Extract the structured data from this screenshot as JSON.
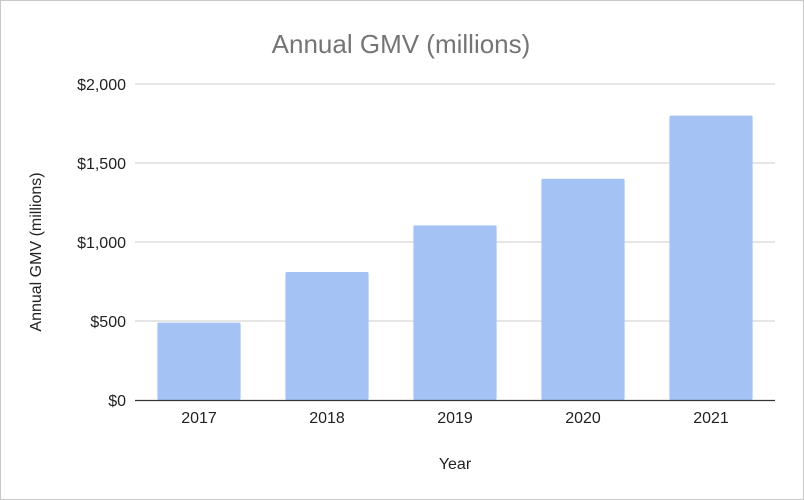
{
  "chart_data": {
    "type": "bar",
    "title": "Annual GMV (millions)",
    "xlabel": "Year",
    "ylabel": "Annual GMV (millions)",
    "categories": [
      "2017",
      "2018",
      "2019",
      "2020",
      "2021"
    ],
    "values": [
      490,
      810,
      1105,
      1400,
      1800
    ],
    "ylim": [
      0,
      2000
    ],
    "yticks": [
      0,
      500,
      1000,
      1500,
      2000
    ],
    "ytick_labels": [
      "$0",
      "$500",
      "$1,000",
      "$1,500",
      "$2,000"
    ],
    "grid": true,
    "legend": "none",
    "colors": {
      "bar": "#a4c2f4",
      "title": "#757575",
      "grid": "#cccccc",
      "axis": "#333333",
      "text": "#222222"
    }
  }
}
